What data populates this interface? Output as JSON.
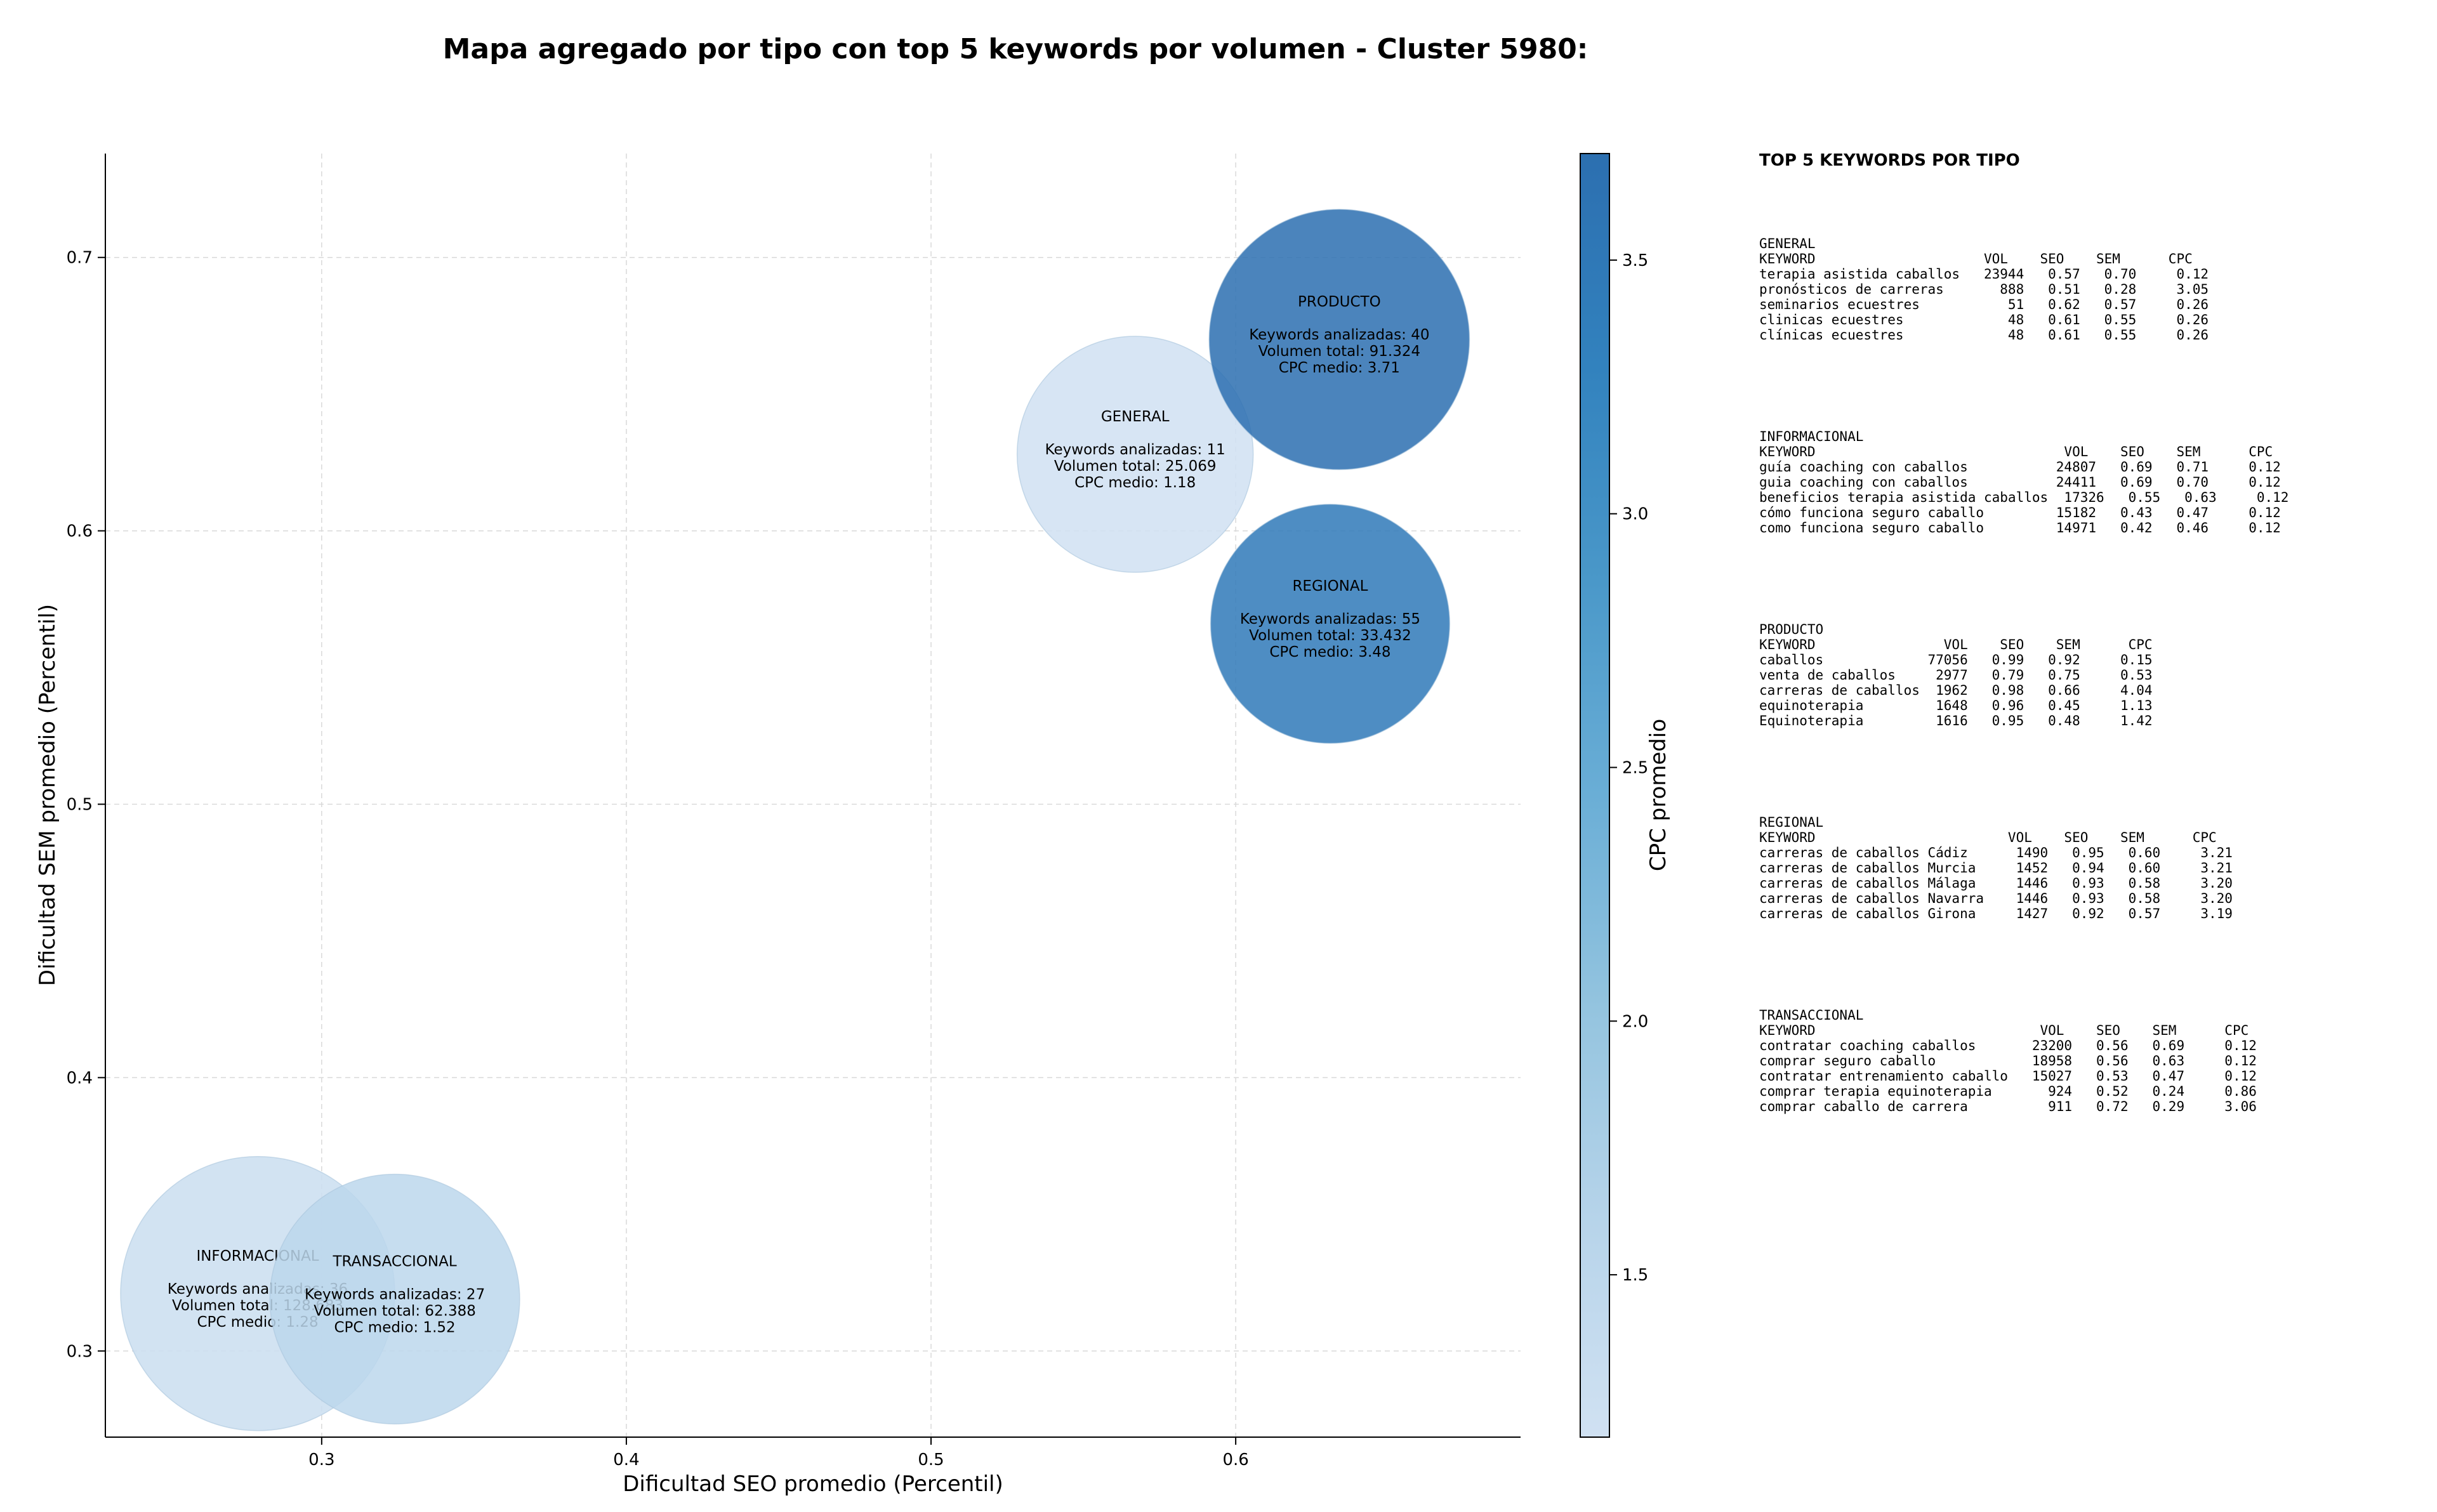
{
  "title": "Mapa agregado por tipo con top 5 keywords por volumen - Cluster 5980:",
  "chart_data": {
    "type": "scatter",
    "xlabel": "Dificultad SEO promedio (Percentil)",
    "ylabel": "Dificultad SEM promedio (Percentil)",
    "xlim": [
      0.229,
      0.6935
    ],
    "ylim": [
      0.2685,
      0.738
    ],
    "xticks": [
      0.3,
      0.4,
      0.5,
      0.6
    ],
    "yticks": [
      0.3,
      0.4,
      0.5,
      0.6,
      0.7
    ],
    "grid": true,
    "colorbar": {
      "label": "CPC promedio",
      "range": [
        1.18,
        3.71
      ],
      "ticks": [
        1.5,
        2.0,
        2.5,
        3.0,
        3.5
      ],
      "colors": [
        "#d0e1f2",
        "#b7d4ea",
        "#94c4df",
        "#6aaed6",
        "#4a98c9",
        "#3282be",
        "#2c6fb0"
      ]
    },
    "points": [
      {
        "name": "GENERAL",
        "x": 0.567,
        "y": 0.628,
        "volume": 25069,
        "cpc": 1.18,
        "keywords_line": "Keywords analizadas: 11",
        "volume_line": "Volumen total: 25.069",
        "cpc_line": "CPC medio: 1.18"
      },
      {
        "name": "PRODUCTO",
        "x": 0.634,
        "y": 0.67,
        "volume": 91324,
        "cpc": 3.71,
        "keywords_line": "Keywords analizadas: 40",
        "volume_line": "Volumen total: 91.324",
        "cpc_line": "CPC medio: 3.71"
      },
      {
        "name": "REGIONAL",
        "x": 0.631,
        "y": 0.566,
        "volume": 33432,
        "cpc": 3.48,
        "keywords_line": "Keywords analizadas: 55",
        "volume_line": "Volumen total: 33.432",
        "cpc_line": "CPC medio: 3.48"
      },
      {
        "name": "INFORMACIONAL",
        "x": 0.279,
        "y": 0.321,
        "volume": 128683,
        "cpc": 1.28,
        "keywords_line": "Keywords analizadas: 36",
        "volume_line": "Volumen total: 128.683",
        "cpc_line": "CPC medio: 1.28"
      },
      {
        "name": "TRANSACCIONAL",
        "x": 0.324,
        "y": 0.319,
        "volume": 62388,
        "cpc": 1.52,
        "keywords_line": "Keywords analizadas: 27",
        "volume_line": "Volumen total: 62.388",
        "cpc_line": "CPC medio: 1.52"
      }
    ]
  },
  "panel": {
    "heading": "TOP 5 KEYWORDS POR TIPO",
    "blocks": [
      {
        "lines": [
          "GENERAL",
          "KEYWORD                     VOL    SEO    SEM      CPC",
          "terapia asistida caballos   23944   0.57   0.70     0.12",
          "pronósticos de carreras       888   0.51   0.28     3.05",
          "seminarios ecuestres           51   0.62   0.57     0.26",
          "clinicas ecuestres             48   0.61   0.55     0.26",
          "clínicas ecuestres             48   0.61   0.55     0.26"
        ]
      },
      {
        "lines": [
          "INFORMACIONAL",
          "KEYWORD                               VOL    SEO    SEM      CPC",
          "guía coaching con caballos           24807   0.69   0.71     0.12",
          "guia coaching con caballos           24411   0.69   0.70     0.12",
          "beneficios terapia asistida caballos  17326   0.55   0.63     0.12",
          "cómo funciona seguro caballo         15182   0.43   0.47     0.12",
          "como funciona seguro caballo         14971   0.42   0.46     0.12"
        ]
      },
      {
        "lines": [
          "PRODUCTO",
          "KEYWORD                VOL    SEO    SEM      CPC",
          "caballos             77056   0.99   0.92     0.15",
          "venta de caballos     2977   0.79   0.75     0.53",
          "carreras de caballos  1962   0.98   0.66     4.04",
          "equinoterapia         1648   0.96   0.45     1.13",
          "Equinoterapia         1616   0.95   0.48     1.42"
        ]
      },
      {
        "lines": [
          "REGIONAL",
          "KEYWORD                        VOL    SEO    SEM      CPC",
          "carreras de caballos Cádiz      1490   0.95   0.60     3.21",
          "carreras de caballos Murcia     1452   0.94   0.60     3.21",
          "carreras de caballos Málaga     1446   0.93   0.58     3.20",
          "carreras de caballos Navarra    1446   0.93   0.58     3.20",
          "carreras de caballos Girona     1427   0.92   0.57     3.19"
        ]
      },
      {
        "lines": [
          "TRANSACCIONAL",
          "KEYWORD                            VOL    SEO    SEM      CPC",
          "contratar coaching caballos       23200   0.56   0.69     0.12",
          "comprar seguro caballo            18958   0.56   0.63     0.12",
          "contratar entrenamiento caballo   15027   0.53   0.47     0.12",
          "comprar terapia equinoterapia       924   0.52   0.24     0.86",
          "comprar caballo de carrera          911   0.72   0.29     3.06"
        ]
      }
    ]
  }
}
